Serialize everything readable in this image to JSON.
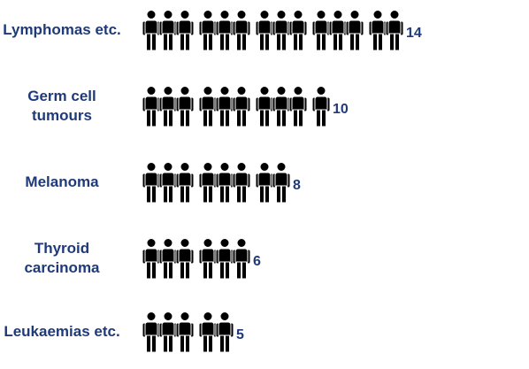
{
  "chart_data": {
    "type": "pictograph",
    "categories": [
      "Lymphomas etc.",
      "Germ cell tumours",
      "Melanoma",
      "Thyroid carcinoma",
      "Leukaemias etc."
    ],
    "values": [
      14,
      10,
      8,
      6,
      5
    ],
    "color": "#000000",
    "label_color": "#1f3a7a"
  }
}
